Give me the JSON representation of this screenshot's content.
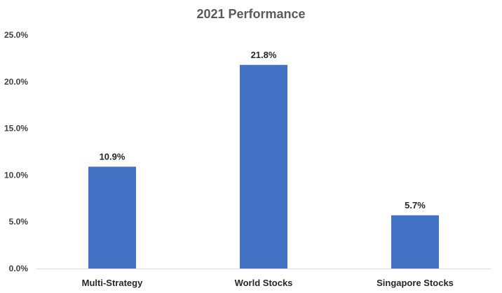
{
  "chart_data": {
    "type": "bar",
    "title": "2021 Performance",
    "categories": [
      "Multi-Strategy",
      "World Stocks",
      "Singapore Stocks"
    ],
    "values": [
      0.109,
      0.218,
      0.057
    ],
    "data_labels": [
      "10.9%",
      "21.8%",
      "5.7%"
    ],
    "ytick_values": [
      0,
      0.05,
      0.1,
      0.15,
      0.2,
      0.25
    ],
    "ytick_labels": [
      "0.0%",
      "5.0%",
      "10.0%",
      "15.0%",
      "20.0%",
      "25.0%"
    ],
    "ylim": [
      0,
      0.25
    ],
    "grid": false,
    "legend": "none",
    "bar_color": "#4472c4",
    "axis_color": "#d9d9d9"
  }
}
